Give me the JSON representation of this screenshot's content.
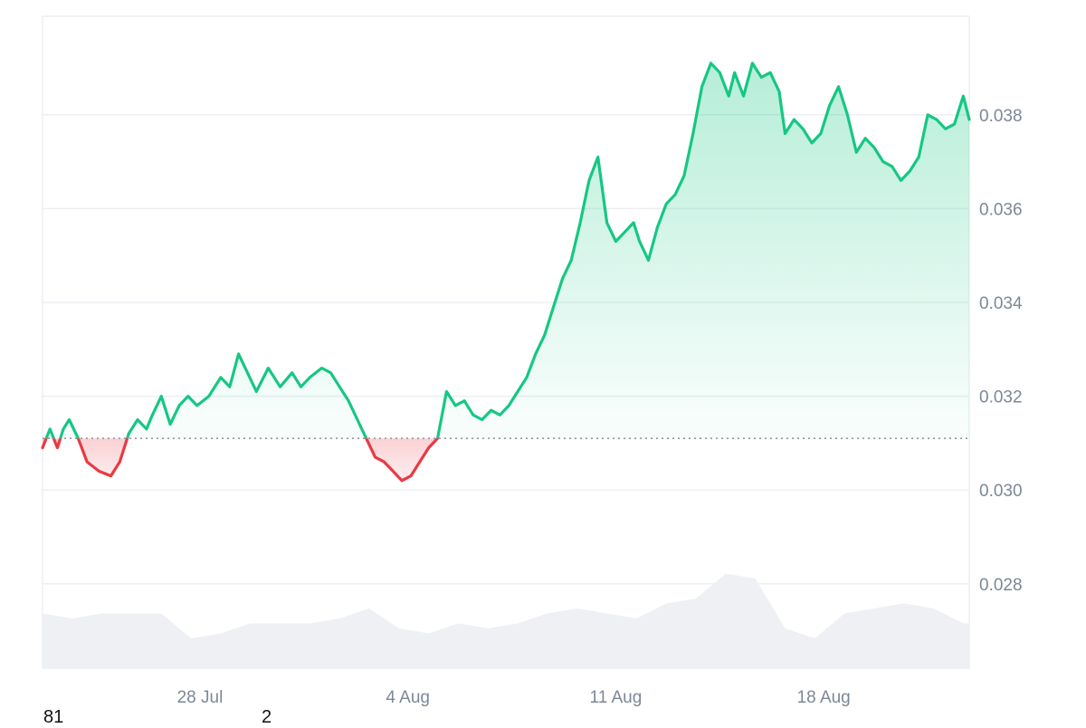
{
  "colors": {
    "up": "#16c784",
    "down": "#ea3943",
    "grid": "#eceff3",
    "axis_text": "#7d8797",
    "volume": "#eef0f4",
    "baseline": "#8a8f98"
  },
  "chart_data": {
    "type": "area",
    "baseline": 0.0311,
    "ylim": [
      0.0262,
      0.0401
    ],
    "y_ticks": [
      "0.038",
      "0.036",
      "0.034",
      "0.032",
      "0.030",
      "0.028"
    ],
    "y_tick_values": [
      0.038,
      0.036,
      0.034,
      0.032,
      0.03,
      0.028
    ],
    "xlim": [
      0,
      31.2
    ],
    "x_ticks": [
      "28 Jul",
      "4 Aug",
      "11 Aug",
      "18 Aug"
    ],
    "x_tick_values": [
      5.3,
      12.3,
      19.3,
      26.3
    ],
    "grid": true,
    "legend": "none",
    "series": [
      {
        "x": [
          0,
          0.25,
          0.5,
          0.7,
          0.9,
          1.2,
          1.5,
          1.9,
          2.3,
          2.6,
          2.9,
          3.2,
          3.5,
          3.7,
          4.0,
          4.3,
          4.6,
          4.9,
          5.2,
          5.6,
          6.0,
          6.3,
          6.6,
          6.9,
          7.2,
          7.6,
          8.0,
          8.4,
          8.7,
          9.0,
          9.4,
          9.7,
          10.0,
          10.3,
          10.6,
          10.9,
          11.2,
          11.5,
          11.8,
          12.1,
          12.4,
          12.7,
          13.0,
          13.3,
          13.6,
          13.9,
          14.2,
          14.5,
          14.8,
          15.1,
          15.4,
          15.7,
          16.0,
          16.3,
          16.6,
          16.9,
          17.2,
          17.5,
          17.8,
          18.1,
          18.4,
          18.7,
          19.0,
          19.3,
          19.6,
          19.9,
          20.1,
          20.4,
          20.7,
          21.0,
          21.3,
          21.6,
          21.9,
          22.2,
          22.5,
          22.8,
          23.1,
          23.3,
          23.6,
          23.9,
          24.2,
          24.5,
          24.8,
          25.0,
          25.3,
          25.6,
          25.9,
          26.2,
          26.5,
          26.8,
          27.1,
          27.4,
          27.7,
          28.0,
          28.3,
          28.6,
          28.9,
          29.2,
          29.5,
          29.8,
          30.1,
          30.4,
          30.7,
          31.0,
          31.2
        ],
        "values": [
          0.0309,
          0.0313,
          0.0309,
          0.0313,
          0.0315,
          0.0311,
          0.0306,
          0.0304,
          0.0303,
          0.0306,
          0.0312,
          0.0315,
          0.0313,
          0.0316,
          0.032,
          0.0314,
          0.0318,
          0.032,
          0.0318,
          0.032,
          0.0324,
          0.0322,
          0.0329,
          0.0325,
          0.0321,
          0.0326,
          0.0322,
          0.0325,
          0.0322,
          0.0324,
          0.0326,
          0.0325,
          0.0322,
          0.0319,
          0.0315,
          0.0311,
          0.0307,
          0.0306,
          0.0304,
          0.0302,
          0.0303,
          0.0306,
          0.0309,
          0.0311,
          0.0321,
          0.0318,
          0.0319,
          0.0316,
          0.0315,
          0.0317,
          0.0316,
          0.0318,
          0.0321,
          0.0324,
          0.0329,
          0.0333,
          0.0339,
          0.0345,
          0.0349,
          0.0357,
          0.0366,
          0.0371,
          0.0357,
          0.0353,
          0.0355,
          0.0357,
          0.0353,
          0.0349,
          0.0356,
          0.0361,
          0.0363,
          0.0367,
          0.0376,
          0.0386,
          0.0391,
          0.0389,
          0.0384,
          0.0389,
          0.0384,
          0.0391,
          0.0388,
          0.0389,
          0.0385,
          0.0376,
          0.0379,
          0.0377,
          0.0374,
          0.0376,
          0.0382,
          0.0386,
          0.038,
          0.0372,
          0.0375,
          0.0373,
          0.037,
          0.0369,
          0.0366,
          0.0368,
          0.0371,
          0.038,
          0.0379,
          0.0377,
          0.0378,
          0.0384,
          0.0379
        ]
      }
    ],
    "volume": {
      "x": [
        0,
        1,
        2,
        3,
        4,
        5,
        6,
        7,
        8,
        9,
        10,
        11,
        12,
        13,
        14,
        15,
        16,
        17,
        18,
        19,
        20,
        21,
        22,
        23,
        24,
        25,
        26,
        27,
        28,
        29,
        30,
        31,
        31.2
      ],
      "values": [
        0.55,
        0.5,
        0.55,
        0.55,
        0.55,
        0.3,
        0.35,
        0.45,
        0.45,
        0.45,
        0.5,
        0.6,
        0.4,
        0.35,
        0.45,
        0.4,
        0.45,
        0.55,
        0.6,
        0.55,
        0.5,
        0.65,
        0.7,
        0.95,
        0.9,
        0.4,
        0.3,
        0.55,
        0.6,
        0.65,
        0.6,
        0.45,
        0.45
      ]
    }
  },
  "stray_labels": [
    "81",
    "2"
  ]
}
